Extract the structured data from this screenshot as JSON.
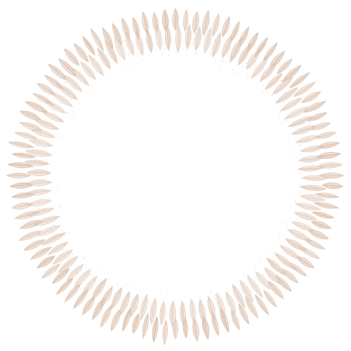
{
  "image": {
    "subject": "wreath-ring",
    "colors": {
      "background": "#ffffff",
      "petal_fill": "#e8d2c2",
      "petal_stroke": "#d3b7a3",
      "petal_vein": "#c9a994",
      "petal_highlight": "#f5ebe3",
      "speckle": "#e4cfc2"
    }
  }
}
